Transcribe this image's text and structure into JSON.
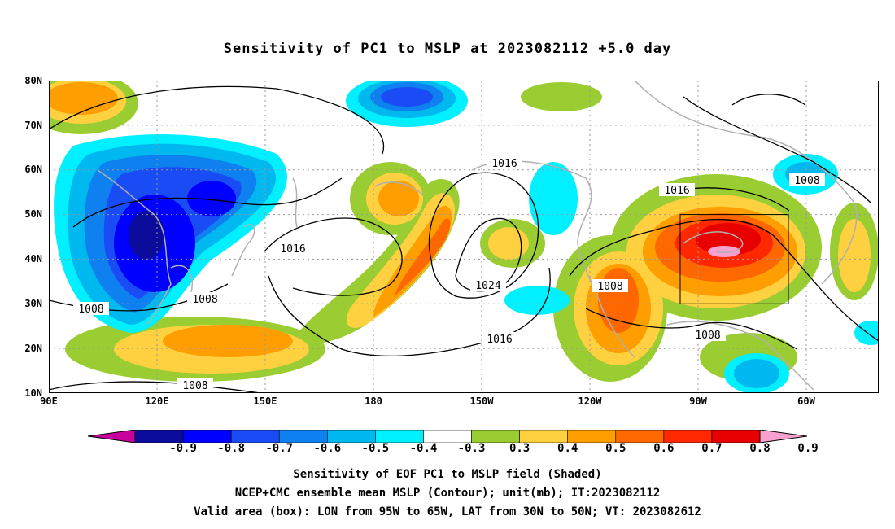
{
  "title": "Sensitivity of PC1 to MSLP at 2023082112 +5.0 day",
  "map": {
    "lat_labels": [
      "80N",
      "70N",
      "60N",
      "50N",
      "40N",
      "30N",
      "20N",
      "10N"
    ],
    "lon_labels": [
      "90E",
      "120E",
      "150E",
      "180",
      "150W",
      "120W",
      "90W",
      "60W"
    ],
    "contour_labels": [
      "1016",
      "1016",
      "1016",
      "1024",
      "1016",
      "1008",
      "1008",
      "1008",
      "1008",
      "1008",
      "1008"
    ],
    "valid_box": {
      "lon_west": "95W",
      "lon_east": "65W",
      "lat_south": "30N",
      "lat_north": "50N"
    }
  },
  "colorbar": {
    "labels": [
      "-0.9",
      "-0.8",
      "-0.7",
      "-0.6",
      "-0.5",
      "-0.4",
      "-0.3",
      "0.3",
      "0.4",
      "0.5",
      "0.6",
      "0.7",
      "0.8",
      "0.9"
    ],
    "colors": [
      "#c6019c",
      "#0c0c9c",
      "#0000ff",
      "#1a4cf5",
      "#0f80f0",
      "#00b8f0",
      "#00f0ff",
      "#ffffff",
      "#9acd32",
      "#ffd040",
      "#ff9e00",
      "#ff6800",
      "#ff2800",
      "#e80000",
      "#f8a0d0"
    ]
  },
  "captions": [
    "Sensitivity of EOF PC1 to MSLP field (Shaded)",
    "NCEP+CMC ensemble mean MSLP (Contour); unit(mb); IT:2023082112",
    "Valid area (box): LON from 95W to 65W, LAT from 30N to 50N; VT: 2023082612"
  ]
}
